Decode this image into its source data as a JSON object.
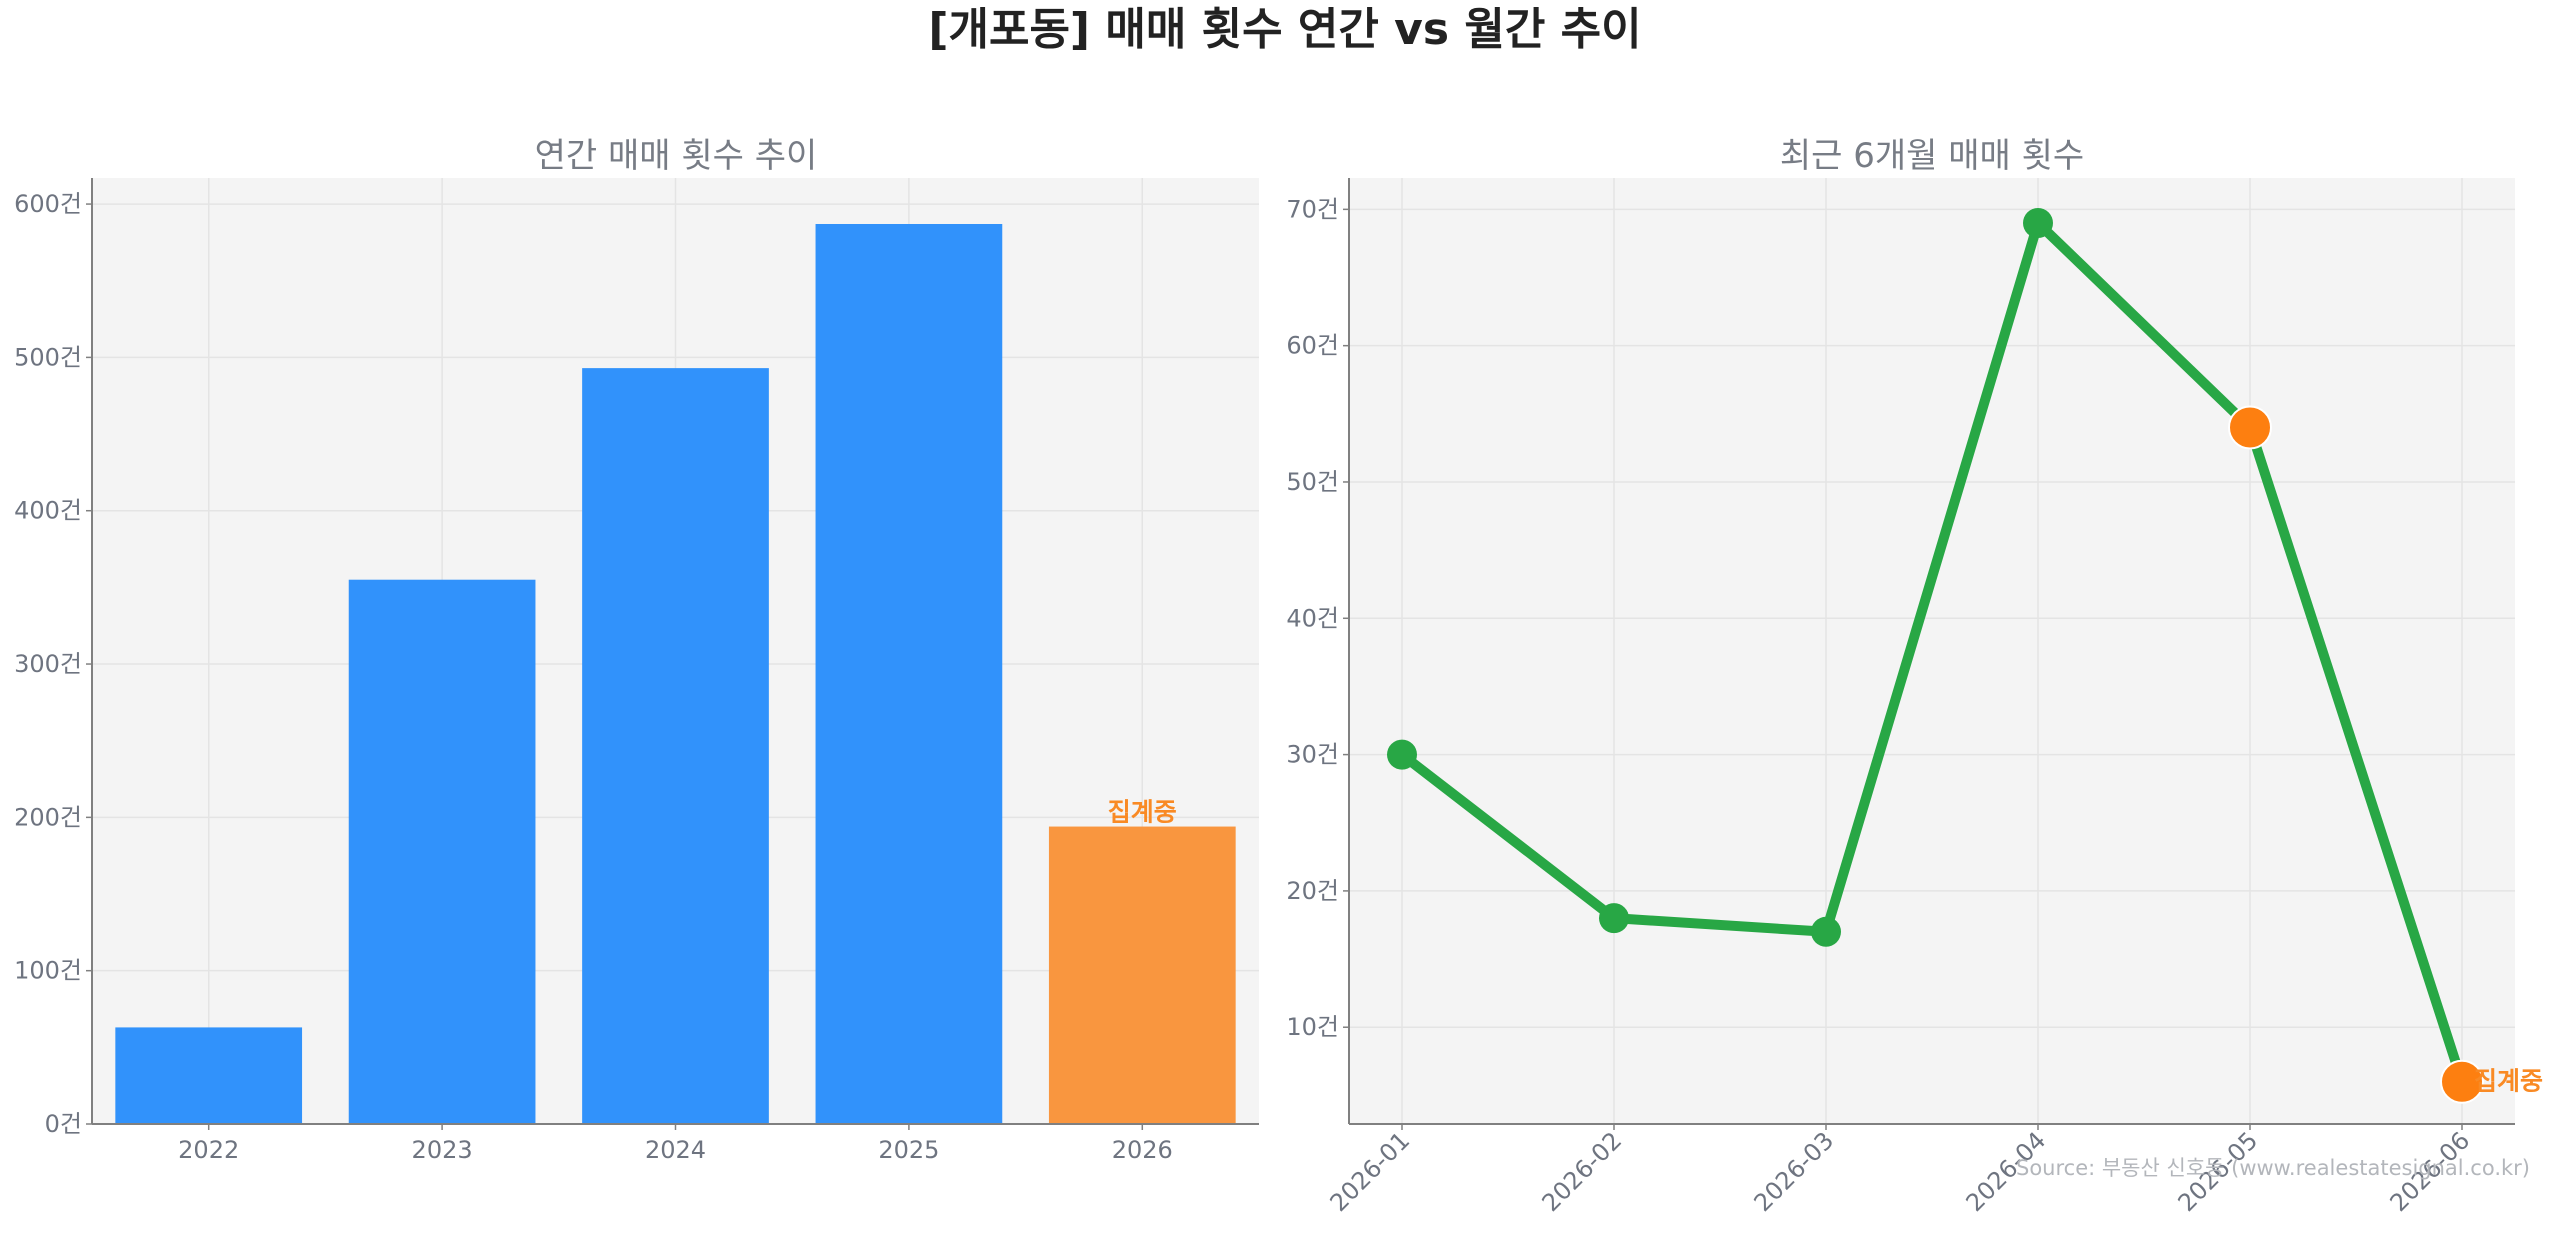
{
  "title": "[개포동] 매매 횟수 연간 vs 월간 추이",
  "colors": {
    "bar": "#3192fb",
    "bar_partial": "#f9963f",
    "line": "#28a745",
    "partial_marker": "#fd7f10",
    "partial_label": "#f98a24",
    "plot_bg": "#f4f4f4",
    "grid": "#e4e4e4"
  },
  "chart_data": [
    {
      "type": "bar",
      "title": "연간 매매 횟수 추이",
      "categories": [
        "2022",
        "2023",
        "2024",
        "2025",
        "2026"
      ],
      "values": [
        63,
        355,
        493,
        587,
        194
      ],
      "partial_index": 4,
      "partial_label": "집계중",
      "ylim": [
        0,
        617
      ],
      "yticks": [
        0,
        100,
        200,
        300,
        400,
        500,
        600
      ],
      "ytick_labels": [
        "0건",
        "100건",
        "200건",
        "300건",
        "400건",
        "500건",
        "600건"
      ],
      "xlabel": "",
      "ylabel": "",
      "grid": true
    },
    {
      "type": "line",
      "title": "최근 6개월 매매 횟수",
      "categories": [
        "2026-01",
        "2026-02",
        "2026-03",
        "2026-04",
        "2026-05",
        "2026-06"
      ],
      "values": [
        30,
        18,
        17,
        69,
        54,
        6
      ],
      "highlight_indices": [
        4,
        5
      ],
      "partial_label": "집계중",
      "ylim": [
        2.9,
        72.3
      ],
      "yticks": [
        10,
        20,
        30,
        40,
        50,
        60,
        70
      ],
      "ytick_labels": [
        "10건",
        "20건",
        "30건",
        "40건",
        "50건",
        "60건",
        "70건"
      ],
      "xlabel": "",
      "ylabel": "",
      "grid": true
    }
  ],
  "source": "Source: 부동산 신호등 (www.realestatesignal.co.kr)"
}
